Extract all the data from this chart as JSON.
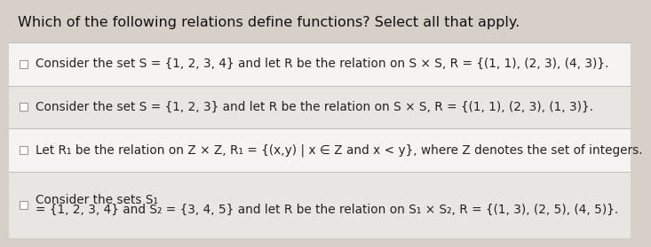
{
  "title": "Which of the following relations define functions? Select all that apply.",
  "background_color": "#d6d0c8",
  "title_fontsize": 11.5,
  "title_color": "#111111",
  "title_fontweight": "normal",
  "options": [
    {
      "line1": "Consider the set S = {1, 2, 3, 4} and let R be the relation on S × S, R = {(1, 1), (2, 3), (4, 3)}.",
      "line2": null,
      "bg": "#f5f4f2"
    },
    {
      "line1": "Consider the set S = {1, 2, 3} and let R be the relation on S × S, R = {(1, 1), (2, 3), (1, 3)}.",
      "line2": null,
      "bg": "#e8e6e2"
    },
    {
      "line1": "Let R₁ be the relation on Z × Z, R₁ = {(x,y) | x ∈ Z and x < y}, where Z denotes the set of integers.",
      "line2": null,
      "bg": "#f5f4f2"
    },
    {
      "line1": "Consider the sets S₁",
      "line2": "= {1, 2, 3, 4} and S₂ = {3, 4, 5} and let R be the relation on S₁ × S₂, R = {(1, 3), (2, 5), (4, 5)}.",
      "bg": "#e8e6e2"
    }
  ],
  "checkbox_color": "#999999",
  "option_fontsize": 9.8,
  "divider_color": "#c0bdb8"
}
